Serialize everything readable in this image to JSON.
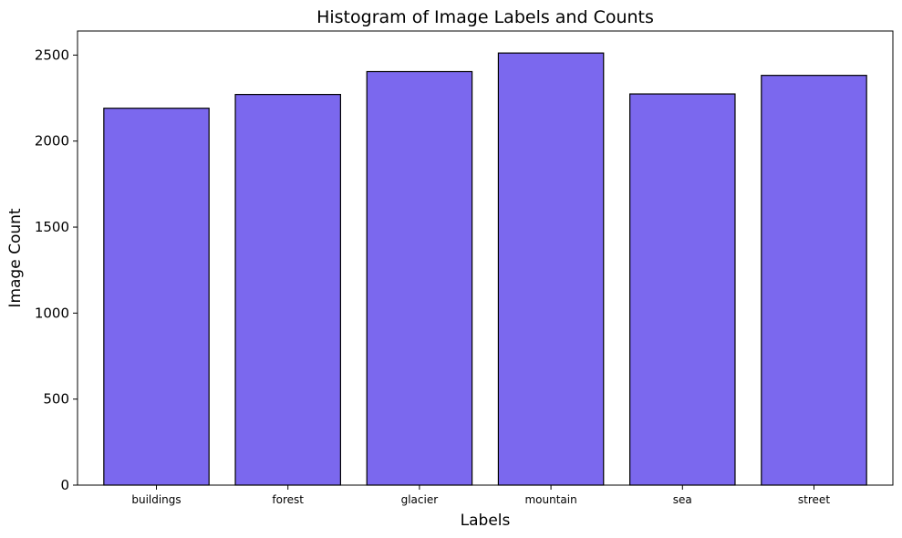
{
  "chart_data": {
    "type": "bar",
    "title": "Histogram of Image Labels and Counts",
    "xlabel": "Labels",
    "ylabel": "Image Count",
    "categories": [
      "buildings",
      "forest",
      "glacier",
      "mountain",
      "sea",
      "street"
    ],
    "values": [
      2191,
      2271,
      2404,
      2512,
      2274,
      2382
    ],
    "ylim": [
      0,
      2640
    ],
    "yticks": [
      0,
      500,
      1000,
      1500,
      2000,
      2500
    ],
    "grid": false,
    "legend": "none",
    "bar_color": "#7b68ee",
    "edge_color": "#000000"
  }
}
